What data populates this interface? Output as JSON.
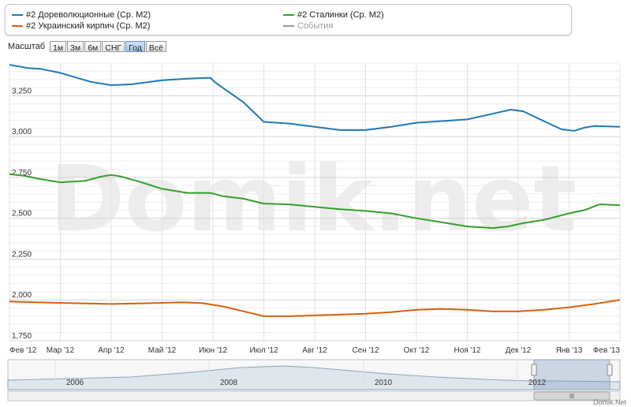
{
  "legend": {
    "items": [
      {
        "label": "#2 Дореволюционные (Ср. М2)",
        "color": "#1f78b4"
      },
      {
        "label": "#2 Сталинки (Ср. М2)",
        "color": "#33a02c"
      },
      {
        "label": "#2 Украинский кирпич (Ср. М2)",
        "color": "#d95f0e"
      },
      {
        "label": "События",
        "color": "#999999"
      }
    ]
  },
  "zoom": {
    "label": "Масштаб",
    "buttons": [
      "1м",
      "3м",
      "6м",
      "СНГ",
      "Год",
      "Всё"
    ],
    "active": "Год"
  },
  "watermark": "Domik.net",
  "credit": "Domik.Net",
  "navigator": {
    "years": [
      "2006",
      "2008",
      "2010",
      "2012"
    ],
    "selection": [
      "Фев '12",
      "Фев '13"
    ]
  },
  "chart_data": {
    "type": "line",
    "x_ticks": [
      "Фев '12",
      "Мар '12",
      "Апр '12",
      "Май '12",
      "Июн '12",
      "Июл '12",
      "Авг '12",
      "Сен '12",
      "Окт '12",
      "Ноя '12",
      "Дек '12",
      "Янв '13",
      "Фев '13"
    ],
    "y_ticks": [
      "1,750",
      "2,000",
      "2,250",
      "2,500",
      "2,750",
      "3,000",
      "3,250"
    ],
    "ylim": [
      1750,
      3450
    ],
    "grid": true,
    "legend_position": "top",
    "series": [
      {
        "name": "#2 Дореволюционные (Ср. М2)",
        "color": "#1f78b4",
        "points": [
          [
            0,
            3440
          ],
          [
            0.35,
            3420
          ],
          [
            0.6,
            3415
          ],
          [
            1,
            3390
          ],
          [
            1.6,
            3335
          ],
          [
            2,
            3315
          ],
          [
            2.4,
            3320
          ],
          [
            3,
            3345
          ],
          [
            3.5,
            3355
          ],
          [
            3.95,
            3360
          ],
          [
            4.05,
            3330
          ],
          [
            4.6,
            3210
          ],
          [
            5,
            3090
          ],
          [
            5.5,
            3080
          ],
          [
            6,
            3060
          ],
          [
            6.5,
            3040
          ],
          [
            7,
            3040
          ],
          [
            7.5,
            3060
          ],
          [
            8,
            3085
          ],
          [
            8.5,
            3095
          ],
          [
            9,
            3105
          ],
          [
            9.5,
            3140
          ],
          [
            9.85,
            3165
          ],
          [
            10.1,
            3155
          ],
          [
            10.5,
            3095
          ],
          [
            10.85,
            3045
          ],
          [
            11.1,
            3035
          ],
          [
            11.3,
            3055
          ],
          [
            11.5,
            3065
          ],
          [
            12,
            3060
          ]
        ]
      },
      {
        "name": "#2 Сталинки (Ср. М2)",
        "color": "#33a02c",
        "points": [
          [
            0,
            2770
          ],
          [
            0.3,
            2760
          ],
          [
            0.6,
            2740
          ],
          [
            1,
            2720
          ],
          [
            1.5,
            2730
          ],
          [
            1.8,
            2755
          ],
          [
            2,
            2765
          ],
          [
            2.2,
            2755
          ],
          [
            2.6,
            2720
          ],
          [
            3,
            2680
          ],
          [
            3.5,
            2655
          ],
          [
            3.95,
            2655
          ],
          [
            4.2,
            2635
          ],
          [
            4.6,
            2620
          ],
          [
            5,
            2590
          ],
          [
            5.5,
            2585
          ],
          [
            6,
            2570
          ],
          [
            6.5,
            2555
          ],
          [
            7,
            2545
          ],
          [
            7.5,
            2530
          ],
          [
            8,
            2500
          ],
          [
            8.5,
            2475
          ],
          [
            9,
            2450
          ],
          [
            9.5,
            2440
          ],
          [
            9.8,
            2450
          ],
          [
            10.1,
            2470
          ],
          [
            10.5,
            2490
          ],
          [
            11,
            2530
          ],
          [
            11.3,
            2550
          ],
          [
            11.6,
            2585
          ],
          [
            12,
            2580
          ]
        ]
      },
      {
        "name": "#2 Украинский кирпич (Ср. М2)",
        "color": "#d95f0e",
        "points": [
          [
            0,
            1990
          ],
          [
            0.5,
            1985
          ],
          [
            1,
            1982
          ],
          [
            1.5,
            1978
          ],
          [
            2,
            1975
          ],
          [
            2.5,
            1978
          ],
          [
            3,
            1982
          ],
          [
            3.4,
            1985
          ],
          [
            3.8,
            1980
          ],
          [
            4.2,
            1960
          ],
          [
            4.6,
            1930
          ],
          [
            5,
            1900
          ],
          [
            5.5,
            1900
          ],
          [
            6,
            1905
          ],
          [
            6.5,
            1910
          ],
          [
            7,
            1915
          ],
          [
            7.5,
            1925
          ],
          [
            8,
            1940
          ],
          [
            8.5,
            1945
          ],
          [
            9,
            1940
          ],
          [
            9.5,
            1930
          ],
          [
            10,
            1930
          ],
          [
            10.5,
            1940
          ],
          [
            11,
            1955
          ],
          [
            11.5,
            1975
          ],
          [
            12,
            2000
          ]
        ]
      }
    ]
  }
}
